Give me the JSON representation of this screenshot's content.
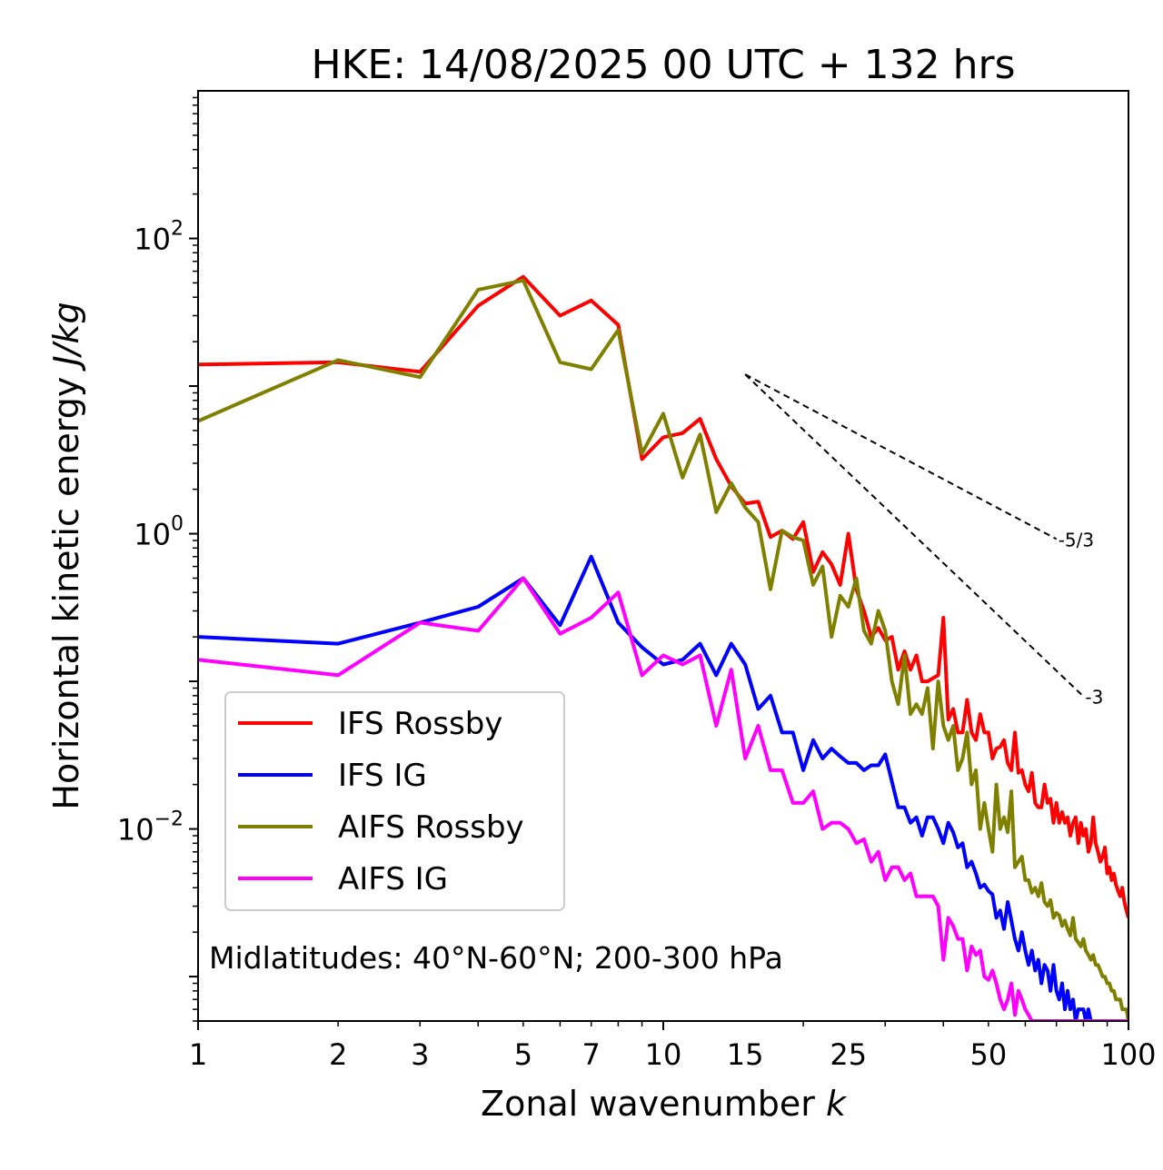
{
  "chart_data": {
    "type": "line",
    "title": "HKE: 14/08/2025 00 UTC + 132 hrs",
    "xlabel": "Zonal wavenumber",
    "xlabel_var": "k",
    "ylabel": "Horizontal kinetic energy",
    "ylabel_unit": "J/kg",
    "xscale": "log",
    "yscale": "log",
    "xlim": [
      1,
      100
    ],
    "ylim": [
      0.0005,
      1000
    ],
    "x_ticks": [
      1,
      2,
      3,
      5,
      7,
      10,
      15,
      25,
      50,
      100
    ],
    "x_tick_labels": [
      "1",
      "2",
      "3",
      "5",
      "7",
      "10",
      "15",
      "25",
      "50",
      "100"
    ],
    "y_ticks": [
      0.01,
      1,
      100
    ],
    "y_tick_labels": [
      {
        "base": "10",
        "exp": "−2"
      },
      {
        "base": "10",
        "exp": "0"
      },
      {
        "base": "10",
        "exp": "2"
      }
    ],
    "annotation": "Midlatitudes: 40°N-60°N; 200-300 hPa",
    "legend_position": "lower-left",
    "reference_slopes": [
      {
        "label": "-5/3",
        "exponent": -1.6667,
        "x_start": 15,
        "x_end": 70,
        "y_start": 12
      },
      {
        "label": "-3",
        "exponent": -3,
        "x_start": 15,
        "x_end": 80,
        "y_start": 12
      }
    ],
    "series": [
      {
        "name": "IFS Rossby",
        "color": "#ff0000",
        "x": [
          1,
          2,
          3,
          4,
          5,
          6,
          7,
          8,
          9,
          10,
          11,
          12,
          13,
          14,
          15,
          16,
          17,
          18,
          19,
          20,
          21,
          22,
          23,
          24,
          25,
          26,
          27,
          28,
          29,
          30,
          31,
          32,
          33,
          34,
          35,
          36,
          37,
          38,
          39,
          40,
          41,
          42,
          43,
          44,
          45,
          46,
          47,
          48,
          49,
          50,
          51,
          52,
          53,
          54,
          55,
          56,
          57,
          58,
          59,
          60,
          61,
          62,
          63,
          64,
          65,
          66,
          67,
          68,
          69,
          70,
          71,
          72,
          73,
          74,
          75,
          76,
          77,
          78,
          79,
          80,
          81,
          82,
          83,
          84,
          85,
          86,
          87,
          88,
          89,
          90,
          91,
          92,
          93,
          94,
          95,
          96,
          97,
          98,
          99,
          100
        ],
        "y": [
          14,
          14.5,
          12.5,
          35,
          55,
          30,
          38,
          26,
          3.2,
          4.5,
          4.8,
          6,
          3.2,
          2.1,
          1.6,
          1.65,
          0.95,
          1.05,
          0.92,
          1.2,
          0.55,
          0.75,
          0.62,
          0.45,
          1.0,
          0.42,
          0.3,
          0.2,
          0.23,
          0.19,
          0.2,
          0.12,
          0.16,
          0.12,
          0.15,
          0.1,
          0.1,
          0.105,
          0.11,
          0.27,
          0.055,
          0.065,
          0.045,
          0.045,
          0.075,
          0.045,
          0.04,
          0.06,
          0.045,
          0.045,
          0.03,
          0.035,
          0.036,
          0.04,
          0.028,
          0.025,
          0.045,
          0.024,
          0.025,
          0.02,
          0.018,
          0.024,
          0.015,
          0.014,
          0.014,
          0.02,
          0.015,
          0.016,
          0.011,
          0.015,
          0.011,
          0.013,
          0.011,
          0.012,
          0.009,
          0.011,
          0.012,
          0.008,
          0.011,
          0.009,
          0.01,
          0.007,
          0.008,
          0.012,
          0.008,
          0.007,
          0.006,
          0.0065,
          0.0075,
          0.005,
          0.0055,
          0.0045,
          0.005,
          0.0042,
          0.0038,
          0.0035,
          0.004,
          0.0032,
          0.0028,
          0.0025
        ]
      },
      {
        "name": "IFS IG",
        "color": "#0000ff",
        "x": [
          1,
          2,
          3,
          4,
          5,
          6,
          7,
          8,
          9,
          10,
          11,
          12,
          13,
          14,
          15,
          16,
          17,
          18,
          19,
          20,
          21,
          22,
          23,
          24,
          25,
          26,
          27,
          28,
          29,
          30,
          31,
          32,
          33,
          34,
          35,
          36,
          37,
          38,
          39,
          40,
          41,
          42,
          43,
          44,
          45,
          46,
          47,
          48,
          49,
          50,
          51,
          52,
          53,
          54,
          55,
          56,
          57,
          58,
          59,
          60,
          61,
          62,
          63,
          64,
          65,
          66,
          67,
          68,
          69,
          70,
          71,
          72,
          73,
          74,
          75,
          76,
          77,
          78,
          79,
          80,
          81,
          82,
          83,
          84,
          85,
          86,
          87,
          88,
          89,
          90,
          91,
          92,
          93,
          94,
          95,
          96,
          97,
          98,
          99,
          100
        ],
        "y": [
          0.2,
          0.18,
          0.25,
          0.32,
          0.5,
          0.24,
          0.7,
          0.25,
          0.17,
          0.13,
          0.14,
          0.18,
          0.11,
          0.18,
          0.13,
          0.065,
          0.08,
          0.045,
          0.045,
          0.025,
          0.04,
          0.03,
          0.035,
          0.031,
          0.028,
          0.028,
          0.025,
          0.027,
          0.027,
          0.032,
          0.021,
          0.014,
          0.014,
          0.011,
          0.012,
          0.009,
          0.012,
          0.012,
          0.01,
          0.008,
          0.011,
          0.0095,
          0.0075,
          0.008,
          0.0055,
          0.006,
          0.005,
          0.004,
          0.0042,
          0.0038,
          0.0036,
          0.0025,
          0.0028,
          0.0021,
          0.0032,
          0.0024,
          0.0018,
          0.0015,
          0.002,
          0.0015,
          0.0012,
          0.0015,
          0.0011,
          0.0013,
          0.0009,
          0.0012,
          0.0011,
          0.0008,
          0.0012,
          0.0008,
          0.0007,
          0.0009,
          0.0006,
          0.0008,
          0.0006,
          0.0007,
          0.0005,
          0.0006,
          0.0006,
          0.0006,
          0.0005,
          0.0006,
          0.0005,
          0.0005,
          0.0005,
          0.0005,
          0.0005,
          0.0005,
          0.0005,
          0.0005,
          0.0005,
          0.0005,
          0.0005,
          0.0005,
          0.0005,
          0.0005,
          0.0005,
          0.0005,
          0.0005,
          0.0005
        ]
      },
      {
        "name": "AIFS Rossby",
        "color": "#808000",
        "x": [
          1,
          2,
          3,
          4,
          5,
          6,
          7,
          8,
          9,
          10,
          11,
          12,
          13,
          14,
          15,
          16,
          17,
          18,
          19,
          20,
          21,
          22,
          23,
          24,
          25,
          26,
          27,
          28,
          29,
          30,
          31,
          32,
          33,
          34,
          35,
          36,
          37,
          38,
          39,
          40,
          41,
          42,
          43,
          44,
          45,
          46,
          47,
          48,
          49,
          50,
          51,
          52,
          53,
          54,
          55,
          56,
          57,
          58,
          59,
          60,
          61,
          62,
          63,
          64,
          65,
          66,
          67,
          68,
          69,
          70,
          71,
          72,
          73,
          74,
          75,
          76,
          77,
          78,
          79,
          80,
          81,
          82,
          83,
          84,
          85,
          86,
          87,
          88,
          89,
          90,
          91,
          92,
          93,
          94,
          95,
          96,
          97,
          98,
          99,
          100
        ],
        "y": [
          5.8,
          15,
          11.5,
          45,
          52,
          14.5,
          13,
          24,
          3.5,
          6.5,
          2.4,
          4.7,
          1.4,
          2.2,
          1.5,
          1.2,
          0.42,
          1.05,
          0.95,
          0.9,
          0.45,
          0.6,
          0.2,
          0.38,
          0.32,
          0.5,
          0.22,
          0.18,
          0.3,
          0.22,
          0.1,
          0.07,
          0.15,
          0.06,
          0.07,
          0.06,
          0.09,
          0.035,
          0.1,
          0.05,
          0.04,
          0.05,
          0.025,
          0.03,
          0.045,
          0.02,
          0.025,
          0.01,
          0.015,
          0.01,
          0.007,
          0.02,
          0.01,
          0.012,
          0.0095,
          0.018,
          0.0055,
          0.006,
          0.0065,
          0.0045,
          0.0045,
          0.0037,
          0.004,
          0.0035,
          0.0043,
          0.0032,
          0.003,
          0.0033,
          0.0025,
          0.0027,
          0.0026,
          0.0022,
          0.0024,
          0.0021,
          0.0019,
          0.0025,
          0.0018,
          0.0017,
          0.0016,
          0.0018,
          0.0015,
          0.0014,
          0.0013,
          0.0014,
          0.0012,
          0.0012,
          0.0011,
          0.001,
          0.001,
          0.0009,
          0.0009,
          0.0008,
          0.0008,
          0.0007,
          0.0007,
          0.0007,
          0.0006,
          0.0006,
          0.0006,
          0.0005
        ]
      },
      {
        "name": "AIFS IG",
        "color": "#ff00ff",
        "x": [
          1,
          2,
          3,
          4,
          5,
          6,
          7,
          8,
          9,
          10,
          11,
          12,
          13,
          14,
          15,
          16,
          17,
          18,
          19,
          20,
          21,
          22,
          23,
          24,
          25,
          26,
          27,
          28,
          29,
          30,
          31,
          32,
          33,
          34,
          35,
          36,
          37,
          38,
          39,
          40,
          41,
          42,
          43,
          44,
          45,
          46,
          47,
          48,
          49,
          50,
          51,
          52,
          53,
          54,
          55,
          56,
          57,
          58,
          59,
          60,
          61,
          62,
          63,
          64,
          65,
          66,
          67,
          68,
          69,
          70,
          71,
          72,
          73,
          74,
          75,
          76,
          77,
          78,
          79,
          80,
          81,
          82,
          83,
          84,
          85,
          86,
          87,
          88,
          89,
          90,
          91,
          92,
          93,
          94,
          95,
          96,
          97,
          98,
          99,
          100
        ],
        "y": [
          0.14,
          0.11,
          0.25,
          0.22,
          0.5,
          0.21,
          0.27,
          0.4,
          0.11,
          0.15,
          0.13,
          0.15,
          0.05,
          0.12,
          0.03,
          0.05,
          0.025,
          0.025,
          0.015,
          0.015,
          0.018,
          0.01,
          0.011,
          0.011,
          0.01,
          0.008,
          0.0085,
          0.006,
          0.007,
          0.0045,
          0.0055,
          0.0055,
          0.0045,
          0.005,
          0.0035,
          0.0035,
          0.0035,
          0.0035,
          0.003,
          0.0013,
          0.0025,
          0.0022,
          0.0018,
          0.0018,
          0.0011,
          0.0016,
          0.0014,
          0.0015,
          0.001,
          0.00095,
          0.0011,
          0.0009,
          0.0007,
          0.0006,
          0.0007,
          0.0009,
          0.00055,
          0.0008,
          0.0007,
          0.0006,
          0.00055,
          0.0005,
          0.0005,
          0.0005,
          0.0005,
          0.0005,
          0.0005,
          0.0005,
          0.0005,
          0.0005,
          0.0005,
          0.0005,
          0.0005,
          0.0005,
          0.0005,
          0.0005,
          0.0005,
          0.0005,
          0.0005,
          0.0005,
          0.0005,
          0.0005,
          0.0005,
          0.0005,
          0.0005,
          0.0005,
          0.0005,
          0.0005,
          0.0005,
          0.0005,
          0.0005,
          0.0005,
          0.0005,
          0.0005,
          0.0005,
          0.0005,
          0.0005,
          0.0005,
          0.0005,
          0.0005
        ]
      }
    ]
  }
}
